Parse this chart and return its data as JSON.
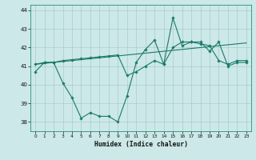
{
  "xlabel": "Humidex (Indice chaleur)",
  "bg_color": "#cce8e8",
  "grid_color": "#aacccc",
  "line_color": "#1a7a6a",
  "xlim": [
    -0.5,
    23.5
  ],
  "ylim": [
    37.5,
    44.3
  ],
  "xticks": [
    0,
    1,
    2,
    3,
    4,
    5,
    6,
    7,
    8,
    9,
    10,
    11,
    12,
    13,
    14,
    15,
    16,
    17,
    18,
    19,
    20,
    21,
    22,
    23
  ],
  "yticks": [
    38,
    39,
    40,
    41,
    42,
    43,
    44
  ],
  "line1_x": [
    0,
    1,
    2,
    3,
    4,
    5,
    6,
    7,
    8,
    9,
    10,
    11,
    12,
    13,
    14,
    15,
    16,
    17,
    18,
    19,
    20,
    21,
    22,
    23
  ],
  "line1_y": [
    40.7,
    41.2,
    41.2,
    40.1,
    39.3,
    38.2,
    38.5,
    38.3,
    38.3,
    38.0,
    39.4,
    41.2,
    41.9,
    42.4,
    41.1,
    43.6,
    42.1,
    42.3,
    42.3,
    41.8,
    42.3,
    41.0,
    41.2,
    41.2
  ],
  "line2_x": [
    0,
    1,
    2,
    3,
    4,
    5,
    6,
    7,
    8,
    9,
    10,
    11,
    12,
    13,
    14,
    15,
    16,
    17,
    18,
    19,
    20,
    21,
    22,
    23
  ],
  "line2_y": [
    41.1,
    41.15,
    41.2,
    41.25,
    41.3,
    41.35,
    41.4,
    41.45,
    41.5,
    41.55,
    41.6,
    41.65,
    41.7,
    41.75,
    41.8,
    41.85,
    41.9,
    41.95,
    42.0,
    42.05,
    42.1,
    42.15,
    42.2,
    42.25
  ],
  "line3_x": [
    0,
    1,
    2,
    3,
    4,
    5,
    6,
    7,
    8,
    9,
    10,
    11,
    12,
    13,
    14,
    15,
    16,
    17,
    18,
    19,
    20,
    21,
    22,
    23
  ],
  "line3_y": [
    41.1,
    41.2,
    41.2,
    41.3,
    41.35,
    41.4,
    41.45,
    41.5,
    41.55,
    41.6,
    40.5,
    40.7,
    41.0,
    41.3,
    41.1,
    42.0,
    42.3,
    42.3,
    42.2,
    42.1,
    41.3,
    41.1,
    41.3,
    41.3
  ]
}
